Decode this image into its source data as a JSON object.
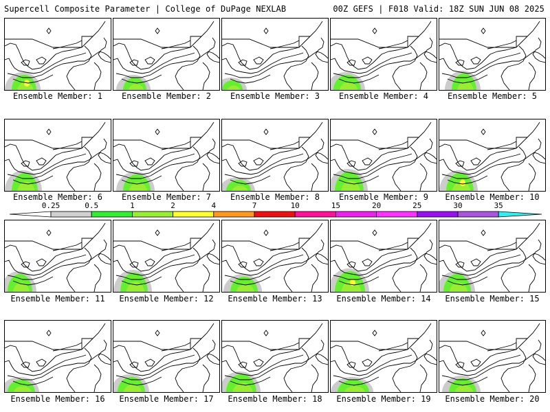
{
  "header": {
    "title": "Supercell Composite Parameter | College of DuPage NEXLAB",
    "run_info": "00Z GEFS | F018 Valid: 18Z SUN JUN 08 2025"
  },
  "panel_caption_prefix": "Ensemble Member: ",
  "members": [
    {
      "id": "1",
      "label": "Ensemble Member: 1",
      "max_scp_class": "2-4"
    },
    {
      "id": "2",
      "label": "Ensemble Member: 2",
      "max_scp_class": "1-2"
    },
    {
      "id": "3",
      "label": "Ensemble Member: 3",
      "max_scp_class": "1-2"
    },
    {
      "id": "4",
      "label": "Ensemble Member: 4",
      "max_scp_class": "1-2"
    },
    {
      "id": "5",
      "label": "Ensemble Member: 5",
      "max_scp_class": "1-2"
    },
    {
      "id": "6",
      "label": "Ensemble Member: 6",
      "max_scp_class": "1-2"
    },
    {
      "id": "7",
      "label": "Ensemble Member: 7",
      "max_scp_class": "1-2"
    },
    {
      "id": "8",
      "label": "Ensemble Member: 8",
      "max_scp_class": "1-2"
    },
    {
      "id": "9",
      "label": "Ensemble Member: 9",
      "max_scp_class": "1-2"
    },
    {
      "id": "10",
      "label": "Ensemble Member: 10",
      "max_scp_class": "2-4"
    },
    {
      "id": "11",
      "label": "Ensemble Member: 11",
      "max_scp_class": "1-2"
    },
    {
      "id": "12",
      "label": "Ensemble Member: 12",
      "max_scp_class": "1-2"
    },
    {
      "id": "13",
      "label": "Ensemble Member: 13",
      "max_scp_class": "1-2"
    },
    {
      "id": "14",
      "label": "Ensemble Member: 14",
      "max_scp_class": "2-4"
    },
    {
      "id": "15",
      "label": "Ensemble Member: 15",
      "max_scp_class": "1-2"
    },
    {
      "id": "16",
      "label": "Ensemble Member: 16",
      "max_scp_class": "1-2"
    },
    {
      "id": "17",
      "label": "Ensemble Member: 17",
      "max_scp_class": "1-2"
    },
    {
      "id": "18",
      "label": "Ensemble Member: 18",
      "max_scp_class": "1-2"
    },
    {
      "id": "19",
      "label": "Ensemble Member: 19",
      "max_scp_class": "1-2"
    },
    {
      "id": "20",
      "label": "Ensemble Member: 20",
      "max_scp_class": "1-2"
    }
  ],
  "colorbar": {
    "ticks": [
      "0.25",
      "0.5",
      "1",
      "2",
      "4",
      "7",
      "10",
      "15",
      "20",
      "25",
      "30",
      "35"
    ],
    "colors": [
      "#d0d0d0",
      "#33ee33",
      "#99ee33",
      "#ffff33",
      "#ff9922",
      "#ee1111",
      "#ff1199",
      "#ee22ee",
      "#ff33ff",
      "#9911ee",
      "#aa55dd",
      "#33eeee"
    ]
  },
  "shading_colors": {
    "0.25-0.5": "#cccccc",
    "0.5-1": "#66ee33",
    "1-2": "#99ee33",
    "2-4": "#ffff33"
  }
}
